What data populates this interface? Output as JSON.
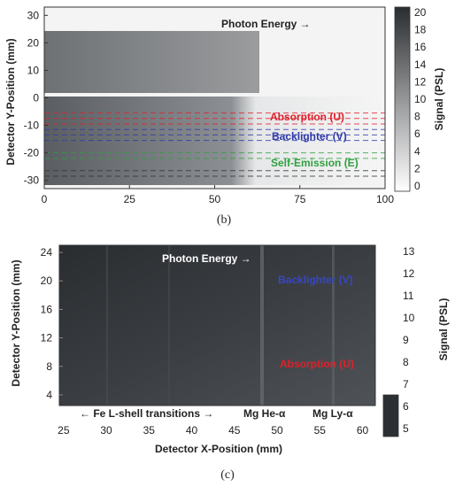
{
  "chart_data": [
    {
      "type": "heatmap",
      "panel_label": "(b)",
      "xlabel": "",
      "ylabel": "Detector Y-Position (mm)",
      "colorbar_label": "Signal (PSL)",
      "xlim": [
        0,
        100
      ],
      "ylim": [
        -33,
        33
      ],
      "x_ticks": [
        0,
        25,
        50,
        75,
        100
      ],
      "y_ticks": [
        -30,
        -20,
        -10,
        0,
        10,
        20,
        30
      ],
      "colorbar_range": [
        0,
        20
      ],
      "colorbar_ticks": [
        0,
        2,
        4,
        6,
        8,
        10,
        12,
        14,
        16,
        18,
        20
      ],
      "annotations": {
        "photon_energy": "Photon Energy →",
        "absorption": "Absorption (U)",
        "backlighter": "Backlighter (V)",
        "self_emission": "Self-Emission (E)"
      },
      "region_colors": {
        "absorption": "#e0202c",
        "backlighter": "#2e3aa8",
        "self_emission": "#2fa040"
      },
      "bands": [
        {
          "name": "upper",
          "x_range": [
            0,
            63
          ],
          "y_range": [
            3,
            25
          ]
        },
        {
          "name": "lower",
          "x_range": [
            0,
            100
          ],
          "y_range": [
            -30,
            1
          ]
        }
      ]
    },
    {
      "type": "heatmap",
      "panel_label": "(c)",
      "xlabel": "Detector X-Position (mm)",
      "ylabel": "Detector Y-Position (mm)",
      "colorbar_label": "Signal (PSL)",
      "xlim": [
        24.5,
        61.5
      ],
      "ylim": [
        2.5,
        25
      ],
      "x_ticks": [
        25,
        30,
        35,
        40,
        45,
        50,
        55,
        60
      ],
      "y_ticks": [
        4,
        8,
        12,
        16,
        20,
        24
      ],
      "colorbar_range": [
        4.6,
        13.3
      ],
      "colorbar_ticks": [
        5,
        6,
        7,
        8,
        9,
        10,
        11,
        12,
        13
      ],
      "annotations": {
        "photon_energy": "Photon Energy →",
        "backlighter": "Backlighter (V)",
        "absorption": "Absorption (U)",
        "fe_l_shell": "← Fe  L-shell  transitions  →",
        "mg_he": "Mg He-α",
        "mg_ly": "Mg Ly-α"
      },
      "region_colors": {
        "backlighter": "#2e3aa8",
        "absorption": "#e0202c"
      }
    }
  ]
}
